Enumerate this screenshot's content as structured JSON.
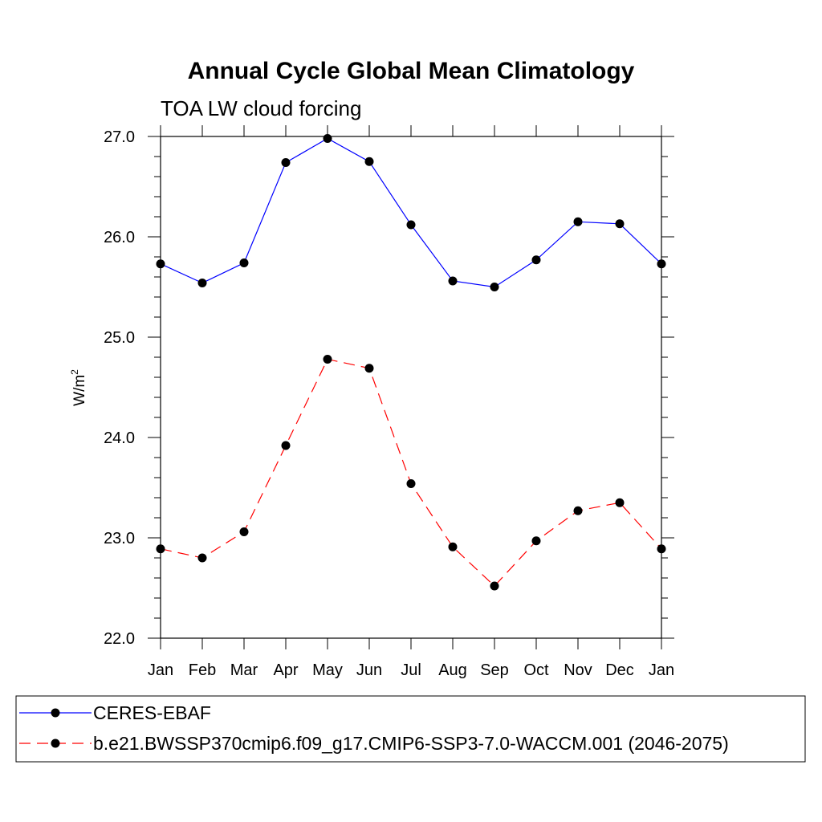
{
  "chart_data": {
    "type": "line",
    "title": "Annual Cycle Global Mean Climatology",
    "subtitle": "TOA LW cloud forcing",
    "xlabel": "",
    "ylabel": "W/m",
    "ylabel_superscript": "2",
    "categories": [
      "Jan",
      "Feb",
      "Mar",
      "Apr",
      "May",
      "Jun",
      "Jul",
      "Aug",
      "Sep",
      "Oct",
      "Nov",
      "Dec",
      "Jan"
    ],
    "ylim": [
      22.0,
      27.0
    ],
    "yticks": [
      "22.0",
      "23.0",
      "24.0",
      "25.0",
      "26.0",
      "27.0"
    ],
    "grid": false,
    "series": [
      {
        "name": "CERES-EBAF",
        "color": "#0000ff",
        "style": "solid",
        "values": [
          25.73,
          25.54,
          25.74,
          26.74,
          26.98,
          26.75,
          26.12,
          25.56,
          25.5,
          25.77,
          26.15,
          26.13,
          25.73
        ]
      },
      {
        "name": "b.e21.BWSSP370cmip6.f09_g17.CMIP6-SSP3-7.0-WACCM.001 (2046-2075)",
        "color": "#ff0000",
        "style": "dashed",
        "values": [
          22.89,
          22.8,
          23.06,
          23.92,
          24.78,
          24.69,
          23.54,
          22.91,
          22.52,
          22.97,
          23.27,
          23.35,
          22.89
        ]
      }
    ],
    "legend_position": "bottom"
  }
}
